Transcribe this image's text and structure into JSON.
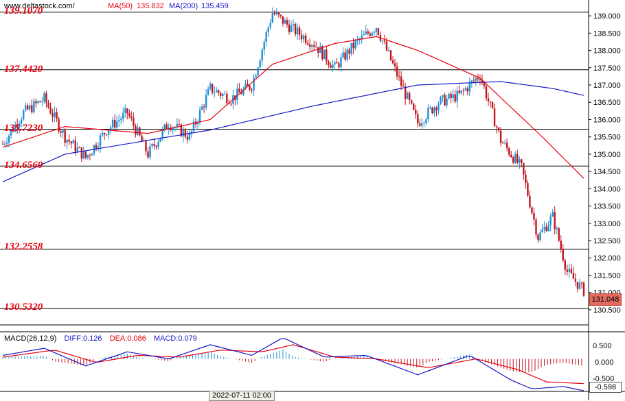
{
  "header": {
    "site": "www.deltastock.com/",
    "ma50_label": "MA(50)",
    "ma50_value": "135.832",
    "ma200_label": "MA(200)",
    "ma200_value": "135.459"
  },
  "colors": {
    "up": "#1e8fd5",
    "down": "#c0141c",
    "ma50": "#e8000d",
    "ma200": "#1515c8",
    "level": "#e8000d",
    "diff": "#1515c8",
    "dea": "#e8000d"
  },
  "levels": [
    "139.1070",
    "137.4420",
    "135.7230",
    "134.6560",
    "132.2558",
    "130.5320"
  ],
  "current_price": "131.048",
  "macd": {
    "title": "MACD(26,12,9)",
    "diff": "DIFF:0.126",
    "dea": "DEA:0.086",
    "macd": "MACD:0.079",
    "current": "-0.598",
    "ticks": [
      "0.500",
      "0.000",
      "-0.500"
    ]
  },
  "time_label": "2022-07-11 02:00",
  "chart_data": {
    "type": "line",
    "y_axis": {
      "range": [
        130.3,
        139.3
      ],
      "ticks": [
        "139.000",
        "138.500",
        "138.000",
        "137.500",
        "137.000",
        "136.500",
        "136.000",
        "135.500",
        "135.000",
        "134.500",
        "134.000",
        "133.500",
        "133.000",
        "132.500",
        "132.000",
        "131.500",
        "131.000",
        "130.500"
      ]
    },
    "levels": [
      139.107,
      137.442,
      135.723,
      134.656,
      132.2558,
      130.532
    ],
    "price_path": [
      {
        "i": 0,
        "c": 135.3
      },
      {
        "i": 10,
        "c": 136.2
      },
      {
        "i": 20,
        "c": 136.6
      },
      {
        "i": 30,
        "c": 135.5
      },
      {
        "i": 40,
        "c": 134.9
      },
      {
        "i": 50,
        "c": 135.7
      },
      {
        "i": 60,
        "c": 136.2
      },
      {
        "i": 70,
        "c": 135.0
      },
      {
        "i": 80,
        "c": 135.9
      },
      {
        "i": 90,
        "c": 135.5
      },
      {
        "i": 100,
        "c": 136.9
      },
      {
        "i": 110,
        "c": 136.6
      },
      {
        "i": 120,
        "c": 137.0
      },
      {
        "i": 130,
        "c": 139.1
      },
      {
        "i": 140,
        "c": 138.6
      },
      {
        "i": 150,
        "c": 138.2
      },
      {
        "i": 160,
        "c": 137.5
      },
      {
        "i": 170,
        "c": 138.2
      },
      {
        "i": 180,
        "c": 138.7
      },
      {
        "i": 190,
        "c": 137.3
      },
      {
        "i": 200,
        "c": 135.9
      },
      {
        "i": 210,
        "c": 136.5
      },
      {
        "i": 220,
        "c": 136.7
      },
      {
        "i": 230,
        "c": 137.3
      },
      {
        "i": 240,
        "c": 135.4
      },
      {
        "i": 250,
        "c": 134.6
      },
      {
        "i": 258,
        "c": 132.6
      },
      {
        "i": 265,
        "c": 133.2
      },
      {
        "i": 272,
        "c": 131.6
      },
      {
        "i": 280,
        "c": 131.05
      }
    ],
    "ma50": [
      {
        "i": 0,
        "c": 135.2
      },
      {
        "i": 30,
        "c": 135.8
      },
      {
        "i": 70,
        "c": 135.6
      },
      {
        "i": 100,
        "c": 136.0
      },
      {
        "i": 130,
        "c": 137.6
      },
      {
        "i": 160,
        "c": 138.2
      },
      {
        "i": 180,
        "c": 138.4
      },
      {
        "i": 200,
        "c": 138.0
      },
      {
        "i": 230,
        "c": 137.2
      },
      {
        "i": 260,
        "c": 135.5
      },
      {
        "i": 280,
        "c": 134.3
      }
    ],
    "ma200": [
      {
        "i": 0,
        "c": 134.2
      },
      {
        "i": 30,
        "c": 135.0
      },
      {
        "i": 60,
        "c": 135.3
      },
      {
        "i": 100,
        "c": 135.7
      },
      {
        "i": 150,
        "c": 136.4
      },
      {
        "i": 200,
        "c": 137.0
      },
      {
        "i": 240,
        "c": 137.1
      },
      {
        "i": 265,
        "c": 136.9
      },
      {
        "i": 280,
        "c": 136.7
      }
    ],
    "macd_range": [
      -0.9,
      0.65
    ],
    "diff_path": [
      {
        "i": 0,
        "c": 0.1
      },
      {
        "i": 20,
        "c": 0.3
      },
      {
        "i": 40,
        "c": -0.2
      },
      {
        "i": 60,
        "c": 0.2
      },
      {
        "i": 80,
        "c": 0.0
      },
      {
        "i": 100,
        "c": 0.4
      },
      {
        "i": 120,
        "c": 0.1
      },
      {
        "i": 135,
        "c": 0.6
      },
      {
        "i": 155,
        "c": 0.05
      },
      {
        "i": 175,
        "c": 0.1
      },
      {
        "i": 200,
        "c": -0.45
      },
      {
        "i": 225,
        "c": 0.1
      },
      {
        "i": 245,
        "c": -0.6
      },
      {
        "i": 255,
        "c": -0.85
      },
      {
        "i": 270,
        "c": -0.78
      },
      {
        "i": 280,
        "c": -0.9
      }
    ],
    "dea_path": [
      {
        "i": 0,
        "c": 0.05
      },
      {
        "i": 25,
        "c": 0.25
      },
      {
        "i": 45,
        "c": -0.1
      },
      {
        "i": 65,
        "c": 0.1
      },
      {
        "i": 85,
        "c": 0.05
      },
      {
        "i": 105,
        "c": 0.25
      },
      {
        "i": 125,
        "c": 0.2
      },
      {
        "i": 140,
        "c": 0.4
      },
      {
        "i": 160,
        "c": 0.05
      },
      {
        "i": 180,
        "c": 0.0
      },
      {
        "i": 205,
        "c": -0.25
      },
      {
        "i": 228,
        "c": 0.0
      },
      {
        "i": 248,
        "c": -0.3
      },
      {
        "i": 262,
        "c": -0.65
      },
      {
        "i": 280,
        "c": -0.7
      }
    ]
  }
}
